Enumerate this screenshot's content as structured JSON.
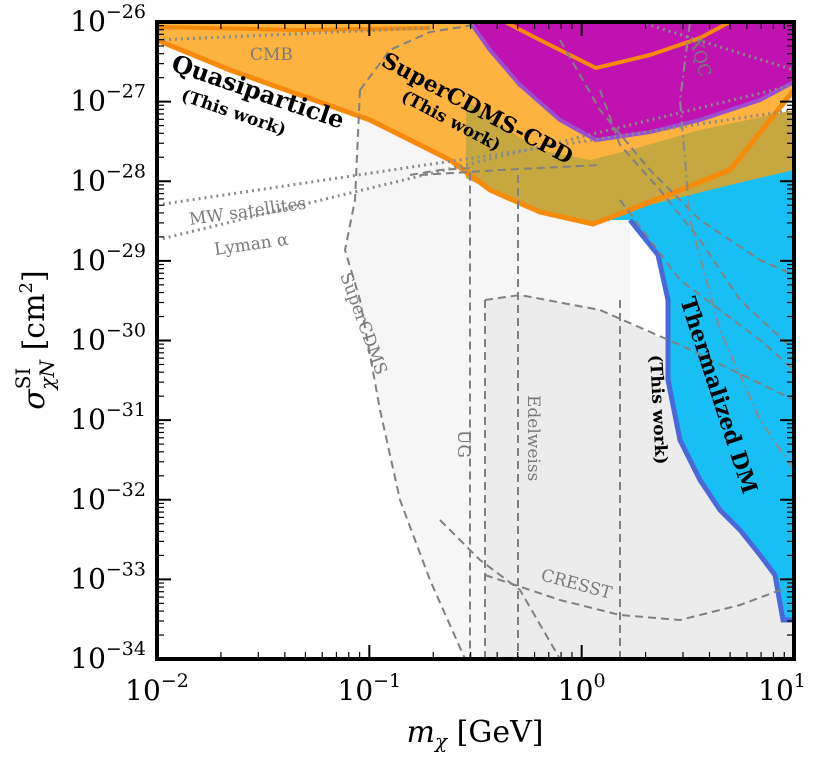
{
  "chart_data": {
    "type": "area",
    "x_axis": {
      "label": "m_χ [GeV]",
      "label_base": "m",
      "label_sub": "χ",
      "label_unit": " [GeV]",
      "scale": "log",
      "range": [
        0.01,
        10
      ],
      "tick_labels": [
        {
          "value": 0.01,
          "base": "10",
          "exp": "−2"
        },
        {
          "value": 0.1,
          "base": "10",
          "exp": "−1"
        },
        {
          "value": 1,
          "base": "10",
          "exp": "0"
        },
        {
          "value": 10,
          "base": "10",
          "exp": "1"
        }
      ]
    },
    "y_axis": {
      "label": "σ^SI_χN [cm^2]",
      "label_base": "σ",
      "label_sup": "SI",
      "label_sub": "χN",
      "label_unit": " [cm",
      "label_unit_exp": "2",
      "label_unit_close": "]",
      "scale": "log",
      "range": [
        1e-34,
        1e-26
      ],
      "tick_labels": [
        {
          "value": 1e-26,
          "base": "10",
          "exp": "−26"
        },
        {
          "value": 1e-27,
          "base": "10",
          "exp": "−27"
        },
        {
          "value": 1e-28,
          "base": "10",
          "exp": "−28"
        },
        {
          "value": 1e-29,
          "base": "10",
          "exp": "−29"
        },
        {
          "value": 1e-30,
          "base": "10",
          "exp": "−30"
        },
        {
          "value": 1e-31,
          "base": "10",
          "exp": "−31"
        },
        {
          "value": 1e-32,
          "base": "10",
          "exp": "−32"
        },
        {
          "value": 1e-33,
          "base": "10",
          "exp": "−33"
        },
        {
          "value": 1e-34,
          "base": "10",
          "exp": "−34"
        }
      ]
    },
    "grid": false,
    "regions": [
      {
        "name": "Thermalized DM",
        "sublabel": "(This work)",
        "color": "#17bff5",
        "edge": "#4a68d8",
        "boundary": [
          [
            1.1,
            2.8e-29
          ],
          [
            2.0,
            1.8e-29
          ],
          [
            2.5,
            1.4e-29
          ],
          [
            2.9,
            4e-30
          ],
          [
            3.0,
            1e-30
          ],
          [
            3.0,
            3e-31
          ],
          [
            3.2,
            3e-32
          ],
          [
            4.0,
            1.2e-32
          ],
          [
            5.0,
            5e-33
          ],
          [
            6.0,
            2e-33
          ],
          [
            8.0,
            1e-33
          ],
          [
            9.0,
            2e-34
          ],
          [
            10,
            2e-34
          ],
          [
            10,
            1e-28
          ]
        ]
      },
      {
        "name": "Quasiparticle",
        "sublabel": "(This work)",
        "color": "#fdb33f",
        "edge": "#f58a0b",
        "boundary": [
          [
            0.01,
            1e-26
          ],
          [
            0.1,
            1.8e-27
          ],
          [
            0.25,
            4e-28
          ],
          [
            0.5,
            1e-28
          ],
          [
            1.1,
            2.8e-29
          ],
          [
            2.0,
            4e-29
          ],
          [
            3.0,
            7e-29
          ],
          [
            6.0,
            1.1e-28
          ],
          [
            10,
            1.4e-28
          ]
        ]
      },
      {
        "name": "SuperCDMS-CPD",
        "sublabel": "(This work)",
        "color": "#c7a73f",
        "edge": "#8a8a8a",
        "x_start": 0.28
      },
      {
        "name": "XQC",
        "color": "#c012b0",
        "edge": "#9b4fd0",
        "boundary": [
          [
            0.29,
            1e-26
          ],
          [
            0.4,
            3.5e-27
          ],
          [
            1.1,
            3.2e-28
          ],
          [
            2.5,
            3.8e-28
          ],
          [
            5,
            8e-28
          ],
          [
            10,
            1.6e-27
          ]
        ]
      }
    ],
    "constraints": [
      {
        "name": "SuperCDMS",
        "style": "dashed"
      },
      {
        "name": "UG",
        "style": "dashed"
      },
      {
        "name": "Edelweiss",
        "style": "dashed"
      },
      {
        "name": "CRESST",
        "style": "dashed"
      },
      {
        "name": "CMB",
        "style": "dotted"
      },
      {
        "name": "MW satellites",
        "style": "dotted"
      },
      {
        "name": "Lyman α",
        "style": "dotted"
      }
    ]
  }
}
